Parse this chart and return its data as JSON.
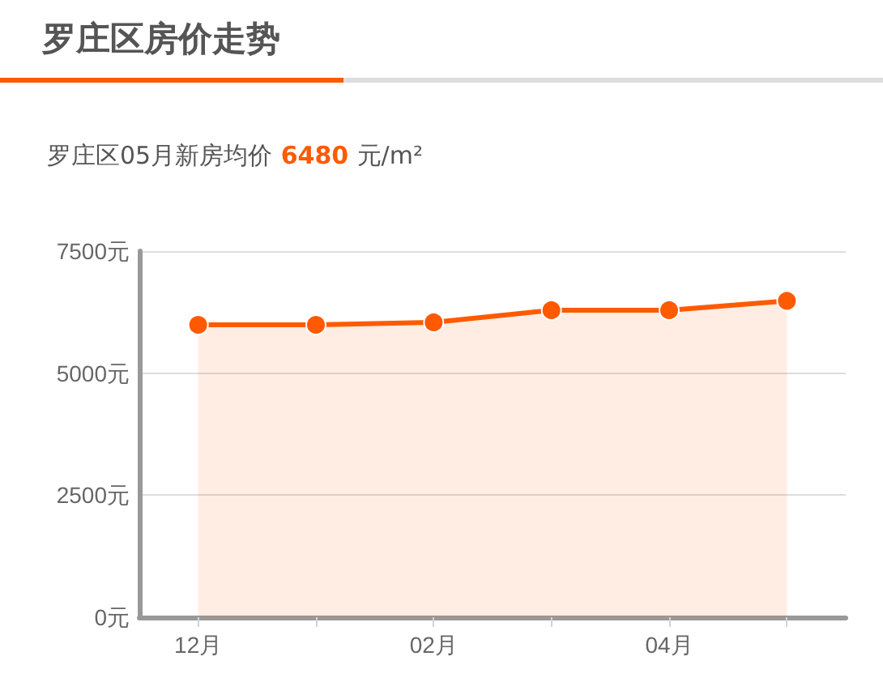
{
  "chart_data": {
    "type": "area",
    "title": "罗庄区房价走势",
    "subtitle": "罗庄区05月新房均价 6480 元/m²",
    "categories": [
      "12月",
      null,
      "02月",
      null,
      "04月",
      null
    ],
    "series": [
      {
        "color": "#ff5a00",
        "values": [
          5990,
          5990,
          6040,
          6290,
          6290,
          6480
        ]
      }
    ],
    "ylim": [
      0,
      7500
    ],
    "yticks": [
      {
        "value": 0,
        "label": "0元"
      },
      {
        "value": 2500,
        "label": "2500元"
      },
      {
        "value": 5000,
        "label": "5000元"
      },
      {
        "value": 7500,
        "label": "7500元"
      }
    ],
    "grid": "y",
    "marker": "circle"
  }
}
